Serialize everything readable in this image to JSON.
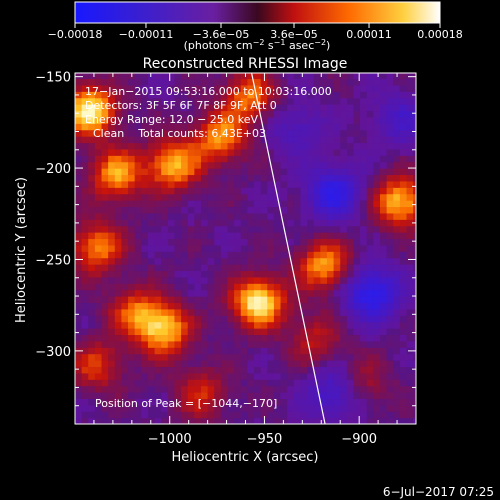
{
  "colorbar": {
    "ticks": [
      "−0.00018",
      "−0.00011",
      "−3.6e−05",
      "3.6e−05",
      "0.00011",
      "0.00018"
    ],
    "tick_values": [
      -0.00018,
      -0.00011,
      -3.6e-05,
      3.6e-05,
      0.00011,
      0.00018
    ],
    "units_main": "(photons cm",
    "units_sup1": "−2",
    "units_mid1": " s",
    "units_sup2": "−1",
    "units_mid2": " asec",
    "units_sup3": "−2",
    "units_end": ")"
  },
  "chart_data": {
    "type": "heatmap",
    "title": "Reconstructed RHESSI Image",
    "xlabel": "Heliocentric X (arcsec)",
    "ylabel": "Heliocentric Y (arcsec)",
    "xlim": [
      -1050,
      -870
    ],
    "ylim": [
      -340,
      -148
    ],
    "xticks": [
      -1000,
      -950,
      -900
    ],
    "xtick_labels": [
      "−1000",
      "−950",
      "−900"
    ],
    "yticks": [
      -300,
      -250,
      -200,
      -150
    ],
    "ytick_labels": [
      "−300",
      "−250",
      "−200",
      "−150"
    ],
    "info_lines": [
      "17−Jan−2015 09:53:16.000 to 10:03:16.000",
      "Detectors: 3F 5F 6F 7F 8F 9F, Att 0",
      "Energy Range: 12.0 − 25.0 keV",
      "Clean    Total counts: 6.43E+03"
    ],
    "peak_text": "Position of Peak = [−1044,−170]",
    "peak_position": [
      -1044,
      -170
    ],
    "limb_line": {
      "from": [
        -958,
        -142
      ],
      "to": [
        -918,
        -340
      ]
    },
    "sources": [
      {
        "x": -1044,
        "y": -170,
        "amp": 1.0
      },
      {
        "x": -1030,
        "y": -205,
        "amp": 0.75
      },
      {
        "x": -1040,
        "y": -245,
        "amp": 0.7
      },
      {
        "x": -1000,
        "y": -200,
        "amp": 0.8
      },
      {
        "x": -975,
        "y": -185,
        "amp": 0.7
      },
      {
        "x": -960,
        "y": -162,
        "amp": 0.65
      },
      {
        "x": -955,
        "y": -275,
        "amp": 1.0
      },
      {
        "x": -1005,
        "y": -290,
        "amp": 0.85
      },
      {
        "x": -1020,
        "y": -280,
        "amp": 0.55
      },
      {
        "x": -920,
        "y": -255,
        "amp": 0.75
      },
      {
        "x": -880,
        "y": -220,
        "amp": 0.85
      },
      {
        "x": -985,
        "y": -325,
        "amp": 0.45
      },
      {
        "x": -1040,
        "y": -310,
        "amp": 0.5
      },
      {
        "x": -900,
        "y": -320,
        "amp": 0.35
      },
      {
        "x": -925,
        "y": -295,
        "amp": 0.4
      }
    ],
    "negative_regions": [
      {
        "x": -915,
        "y": -215,
        "amp": -0.75
      },
      {
        "x": -895,
        "y": -270,
        "amp": -0.85
      },
      {
        "x": -915,
        "y": -325,
        "amp": -0.55
      },
      {
        "x": -880,
        "y": -175,
        "amp": -0.4
      },
      {
        "x": -935,
        "y": -180,
        "amp": -0.35
      }
    ]
  },
  "footer": {
    "timestamp": "6−Jul−2017 07:25"
  }
}
